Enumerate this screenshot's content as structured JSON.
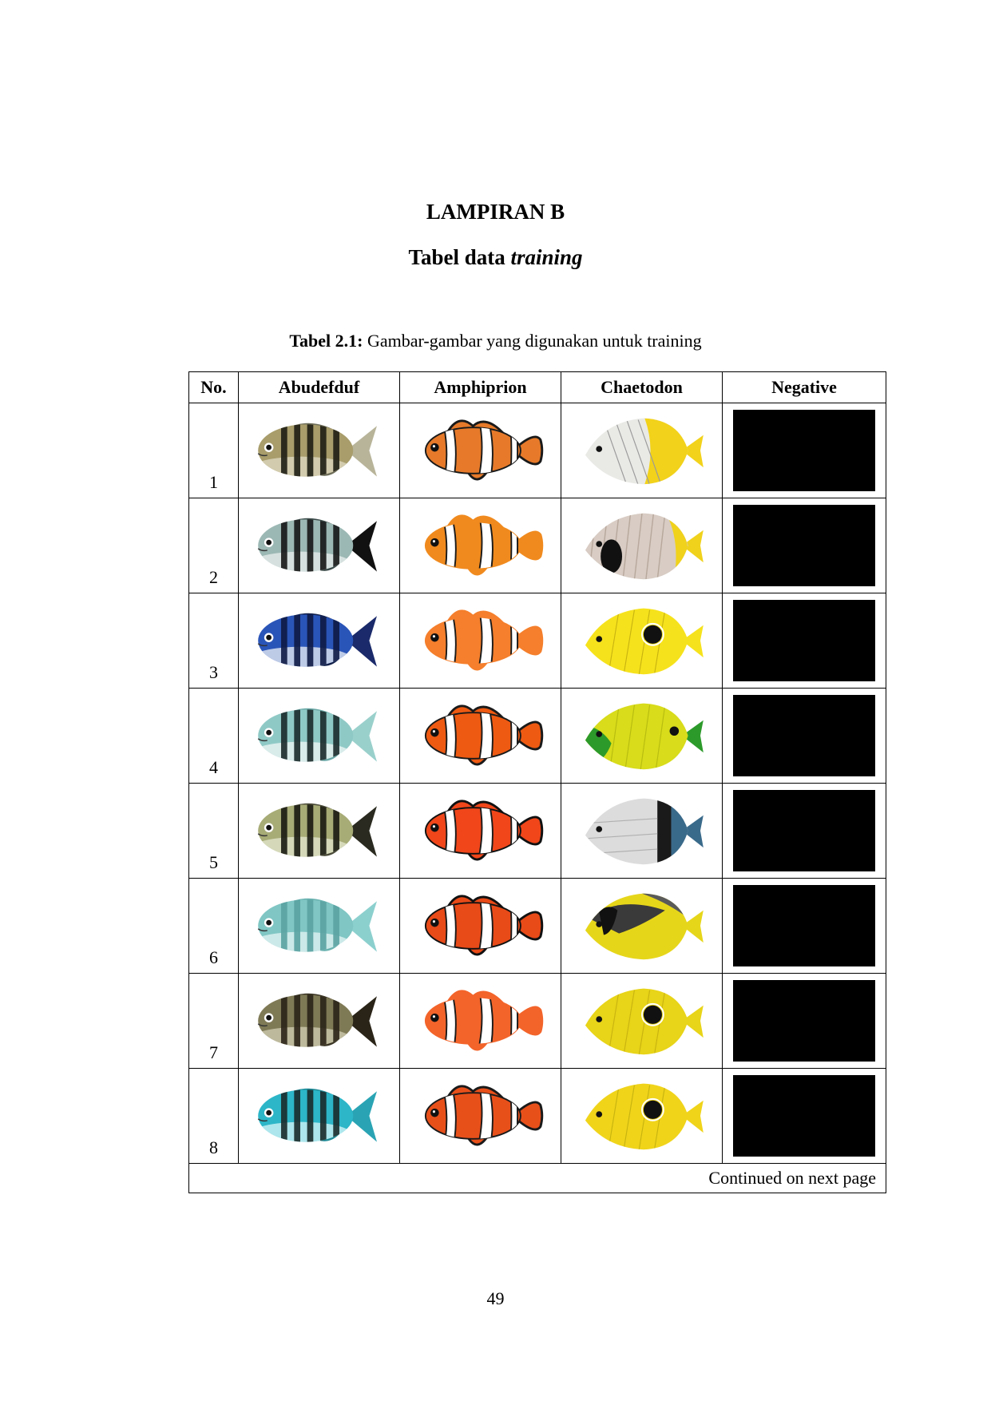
{
  "heading": {
    "title": "LAMPIRAN B",
    "subtitle_plain": "Tabel data",
    "subtitle_italic": "training"
  },
  "caption": {
    "label": "Tabel 2.1:",
    "text": "Gambar-gambar yang digunakan untuk training"
  },
  "table": {
    "headers": [
      "No.",
      "Abudefduf",
      "Amphiprion",
      "Chaetodon",
      "Negative"
    ],
    "rows": [
      {
        "no": "1",
        "abudefduf": {
          "body": "#a89d6b",
          "belly": "#d9d4b8",
          "stripe": "#1e1e14",
          "fin": "#6e6e5a",
          "tail": "#b8b49a"
        },
        "amphiprion": {
          "body": "#e67a2a",
          "edge": "#1a1a1a"
        },
        "chaetodon": {
          "style": "threadfin",
          "body": "#e9e9e6",
          "accent": "#f2d21a",
          "mark": "#222222"
        }
      },
      {
        "no": "2",
        "abudefduf": {
          "body": "#9cb8b4",
          "belly": "#e1e8e6",
          "stripe": "#161616",
          "fin": "#3a4a48",
          "tail": "#111111"
        },
        "amphiprion": {
          "body": "#f08a1e",
          "edge": "#f08a1e"
        },
        "chaetodon": {
          "style": "facemask",
          "body": "#d8ccc4",
          "accent": "#f0d21c",
          "mark": "#111111"
        }
      },
      {
        "no": "3",
        "abudefduf": {
          "body": "#2a55b8",
          "belly": "#d8e0ee",
          "stripe": "#0d1a44",
          "fin": "#12204a",
          "tail": "#1a2a6a"
        },
        "amphiprion": {
          "body": "#f57f2c",
          "edge": "#f57f2c"
        },
        "chaetodon": {
          "style": "spot",
          "body": "#f6e21c",
          "accent": "#f6e21c",
          "mark": "#111111"
        }
      },
      {
        "no": "4",
        "abudefduf": {
          "body": "#8fc9c6",
          "belly": "#e6f2f0",
          "stripe": "#1a2a2a",
          "fin": "#6aa8a6",
          "tail": "#9ad0cc"
        },
        "amphiprion": {
          "body": "#ee5a12",
          "edge": "#1a1a1a"
        },
        "chaetodon": {
          "style": "green",
          "body": "#d8dc1a",
          "accent": "#2c9a2a",
          "mark": "#111111"
        }
      },
      {
        "no": "5",
        "abudefduf": {
          "body": "#a7ab76",
          "belly": "#dde0c6",
          "stripe": "#1a1a12",
          "fin": "#4a4a38",
          "tail": "#2a2a20"
        },
        "amphiprion": {
          "body": "#f0461a",
          "edge": "#111111"
        },
        "chaetodon": {
          "style": "banded",
          "body": "#dcdcdc",
          "accent": "#3a6a8a",
          "mark": "#1a1a1a"
        }
      },
      {
        "no": "6",
        "abudefduf": {
          "body": "#7fc6c4",
          "belly": "#d8eeee",
          "stripe": "#5aa2a2",
          "fin": "#6ab2b0",
          "tail": "#8cd0ce"
        },
        "amphiprion": {
          "body": "#e84a18",
          "edge": "#111111"
        },
        "chaetodon": {
          "style": "raccoon",
          "body": "#e6d61a",
          "accent": "#e6d61a",
          "mark": "#111111"
        }
      },
      {
        "no": "7",
        "abudefduf": {
          "body": "#7f7a56",
          "belly": "#c8c4a8",
          "stripe": "#2a2418",
          "fin": "#3a3424",
          "tail": "#2a2418"
        },
        "amphiprion": {
          "body": "#f3642a",
          "edge": "#f3642a"
        },
        "chaetodon": {
          "style": "spot",
          "body": "#e8d418",
          "accent": "#e8d418",
          "mark": "#111111"
        }
      },
      {
        "no": "8",
        "abudefduf": {
          "body": "#2cb6c8",
          "belly": "#c4eef2",
          "stripe": "#1a2a2a",
          "fin": "#1e8a96",
          "tail": "#2aa4b4"
        },
        "amphiprion": {
          "body": "#e8501a",
          "edge": "#1a1a1a"
        },
        "chaetodon": {
          "style": "spot",
          "body": "#f0d41a",
          "accent": "#f0d41a",
          "mark": "#111111"
        }
      }
    ],
    "negative_color": "#000000",
    "continued": "Continued on next page"
  },
  "page_number": "49"
}
